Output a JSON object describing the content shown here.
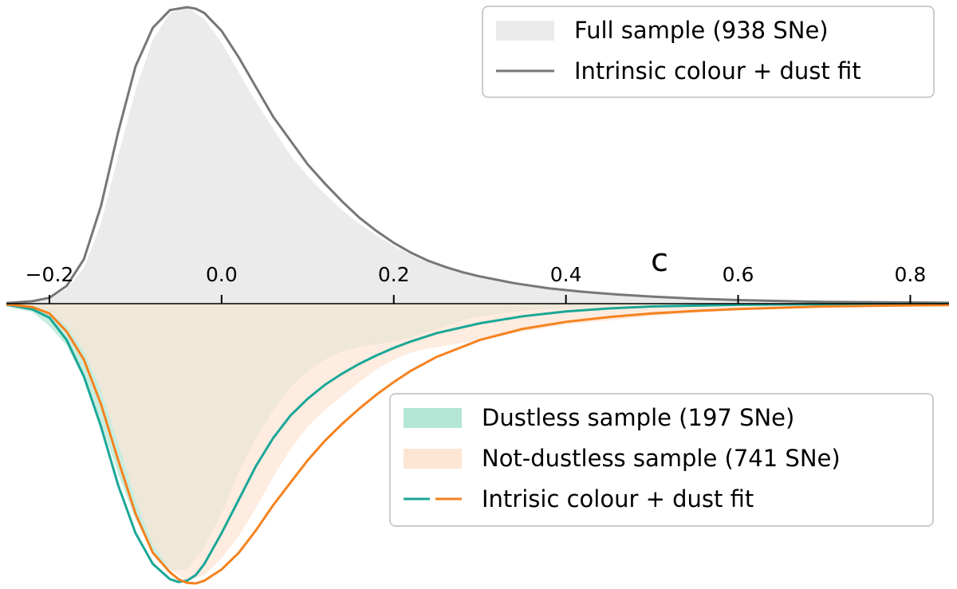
{
  "chart_data": {
    "type": "area",
    "xlabel": "c",
    "xlim": [
      -0.25,
      0.845
    ],
    "xticks": [
      -0.2,
      0.0,
      0.2,
      0.4,
      0.6,
      0.8
    ],
    "xtick_labels": [
      "−0.2",
      "0.0",
      "0.2",
      "0.4",
      "0.6",
      "0.8"
    ],
    "grid": false,
    "upper_panel": {
      "series": [
        {
          "name": "Full sample (938 SNe)",
          "kind": "filled",
          "color": "#ebebeb",
          "x": [
            -0.25,
            -0.22,
            -0.2,
            -0.18,
            -0.16,
            -0.14,
            -0.12,
            -0.1,
            -0.08,
            -0.06,
            -0.04,
            -0.02,
            0.0,
            0.02,
            0.04,
            0.06,
            0.08,
            0.1,
            0.12,
            0.14,
            0.16,
            0.18,
            0.2,
            0.22,
            0.24,
            0.26,
            0.28,
            0.3,
            0.34,
            0.38,
            0.42,
            0.46,
            0.5,
            0.55,
            0.6,
            0.7,
            0.8,
            0.845
          ],
          "y": [
            0.0,
            0.01,
            0.02,
            0.05,
            0.12,
            0.27,
            0.5,
            0.72,
            0.89,
            0.98,
            1.0,
            0.96,
            0.88,
            0.78,
            0.68,
            0.59,
            0.5,
            0.43,
            0.37,
            0.315,
            0.27,
            0.23,
            0.195,
            0.165,
            0.14,
            0.122,
            0.11,
            0.095,
            0.072,
            0.055,
            0.042,
            0.032,
            0.025,
            0.018,
            0.013,
            0.007,
            0.004,
            0.003
          ]
        },
        {
          "name": "Intrinsic colour + dust fit",
          "kind": "line",
          "color": "#777777",
          "x": [
            -0.25,
            -0.22,
            -0.2,
            -0.18,
            -0.16,
            -0.14,
            -0.12,
            -0.1,
            -0.08,
            -0.06,
            -0.04,
            -0.03,
            -0.02,
            0.0,
            0.02,
            0.04,
            0.06,
            0.08,
            0.1,
            0.12,
            0.14,
            0.16,
            0.18,
            0.2,
            0.22,
            0.24,
            0.26,
            0.28,
            0.3,
            0.34,
            0.38,
            0.42,
            0.46,
            0.5,
            0.55,
            0.6,
            0.7,
            0.8,
            0.845
          ],
          "y": [
            0.002,
            0.008,
            0.02,
            0.06,
            0.15,
            0.33,
            0.58,
            0.8,
            0.93,
            0.99,
            1.0,
            0.995,
            0.98,
            0.92,
            0.83,
            0.73,
            0.63,
            0.55,
            0.47,
            0.405,
            0.345,
            0.29,
            0.245,
            0.205,
            0.172,
            0.145,
            0.124,
            0.106,
            0.092,
            0.069,
            0.052,
            0.04,
            0.031,
            0.024,
            0.017,
            0.012,
            0.006,
            0.004,
            0.003
          ]
        }
      ]
    },
    "lower_panel": {
      "direction": "downward",
      "series": [
        {
          "name": "Dustless sample (197 SNe)",
          "kind": "filled",
          "color": "#b3e6d4",
          "x": [
            -0.25,
            -0.22,
            -0.2,
            -0.18,
            -0.16,
            -0.14,
            -0.12,
            -0.1,
            -0.08,
            -0.06,
            -0.04,
            -0.02,
            0.0,
            0.02,
            0.04,
            0.06,
            0.08,
            0.1,
            0.12,
            0.14,
            0.16,
            0.18,
            0.2,
            0.22,
            0.24,
            0.26,
            0.28,
            0.3,
            0.35,
            0.4,
            0.45,
            0.5,
            0.6,
            0.7,
            0.845
          ],
          "y": [
            0.01,
            0.03,
            0.08,
            0.15,
            0.27,
            0.43,
            0.61,
            0.77,
            0.89,
            0.95,
            0.95,
            0.87,
            0.75,
            0.6,
            0.48,
            0.38,
            0.3,
            0.24,
            0.2,
            0.17,
            0.155,
            0.145,
            0.135,
            0.12,
            0.1,
            0.08,
            0.06,
            0.045,
            0.025,
            0.015,
            0.009,
            0.005,
            0.002,
            0.001,
            0.0
          ]
        },
        {
          "name": "Not-dustless sample (741 SNe)",
          "kind": "filled",
          "color": "#fde5d4",
          "x": [
            -0.25,
            -0.22,
            -0.2,
            -0.18,
            -0.16,
            -0.14,
            -0.12,
            -0.1,
            -0.08,
            -0.06,
            -0.04,
            -0.02,
            0.0,
            0.02,
            0.04,
            0.06,
            0.08,
            0.1,
            0.12,
            0.14,
            0.16,
            0.18,
            0.2,
            0.22,
            0.24,
            0.26,
            0.28,
            0.3,
            0.35,
            0.4,
            0.45,
            0.5,
            0.55,
            0.6,
            0.7,
            0.8,
            0.845
          ],
          "y": [
            0.0,
            0.01,
            0.03,
            0.08,
            0.17,
            0.31,
            0.5,
            0.7,
            0.86,
            0.95,
            0.99,
            0.97,
            0.91,
            0.83,
            0.73,
            0.62,
            0.52,
            0.44,
            0.38,
            0.33,
            0.28,
            0.235,
            0.2,
            0.175,
            0.16,
            0.15,
            0.14,
            0.13,
            0.1,
            0.075,
            0.06,
            0.045,
            0.032,
            0.022,
            0.012,
            0.006,
            0.004
          ]
        },
        {
          "name": "Intrisic colour + dust fit",
          "kind": "line",
          "color": "#1aa797",
          "x": [
            -0.25,
            -0.22,
            -0.2,
            -0.18,
            -0.16,
            -0.14,
            -0.12,
            -0.1,
            -0.08,
            -0.06,
            -0.05,
            -0.04,
            -0.03,
            -0.02,
            0.0,
            0.02,
            0.04,
            0.06,
            0.08,
            0.1,
            0.12,
            0.14,
            0.16,
            0.18,
            0.2,
            0.22,
            0.25,
            0.3,
            0.35,
            0.4,
            0.45,
            0.5,
            0.6,
            0.7,
            0.845
          ],
          "y": [
            0.003,
            0.02,
            0.05,
            0.13,
            0.26,
            0.44,
            0.65,
            0.82,
            0.93,
            0.985,
            0.995,
            0.99,
            0.97,
            0.93,
            0.82,
            0.7,
            0.58,
            0.48,
            0.4,
            0.34,
            0.29,
            0.25,
            0.215,
            0.185,
            0.158,
            0.135,
            0.105,
            0.07,
            0.045,
            0.028,
            0.017,
            0.01,
            0.004,
            0.002,
            0.001
          ]
        },
        {
          "name": "Intrisic colour + dust fit",
          "kind": "line",
          "color": "#f5821f",
          "x": [
            -0.25,
            -0.22,
            -0.2,
            -0.18,
            -0.16,
            -0.14,
            -0.12,
            -0.1,
            -0.08,
            -0.06,
            -0.05,
            -0.04,
            -0.03,
            -0.02,
            -0.01,
            0.0,
            0.02,
            0.04,
            0.06,
            0.08,
            0.1,
            0.12,
            0.14,
            0.16,
            0.18,
            0.2,
            0.22,
            0.25,
            0.3,
            0.35,
            0.4,
            0.45,
            0.5,
            0.55,
            0.6,
            0.7,
            0.8,
            0.845
          ],
          "y": [
            0.002,
            0.012,
            0.035,
            0.1,
            0.2,
            0.36,
            0.56,
            0.75,
            0.89,
            0.96,
            0.985,
            0.998,
            1.0,
            0.99,
            0.97,
            0.95,
            0.89,
            0.81,
            0.72,
            0.64,
            0.56,
            0.49,
            0.43,
            0.375,
            0.325,
            0.28,
            0.24,
            0.19,
            0.13,
            0.09,
            0.065,
            0.048,
            0.035,
            0.026,
            0.019,
            0.01,
            0.006,
            0.005
          ]
        }
      ]
    },
    "legends": [
      {
        "placement": "top-right",
        "entries": [
          {
            "label": "Full sample (938 SNe)",
            "kind": "patch",
            "color": "#ebebeb"
          },
          {
            "label": "Intrinsic colour + dust fit",
            "kind": "line",
            "color": "#777777"
          }
        ]
      },
      {
        "placement": "lower-right",
        "entries": [
          {
            "label": "Dustless sample (197 SNe)",
            "kind": "patch",
            "color": "#b3e6d4"
          },
          {
            "label": "Not-dustless sample (741 SNe)",
            "kind": "patch",
            "color": "#fde5d4"
          },
          {
            "label": "Intrisic colour + dust fit",
            "kind": "dual-dashed-line",
            "colors": [
              "#1aa797",
              "#f5821f"
            ]
          }
        ]
      }
    ]
  }
}
